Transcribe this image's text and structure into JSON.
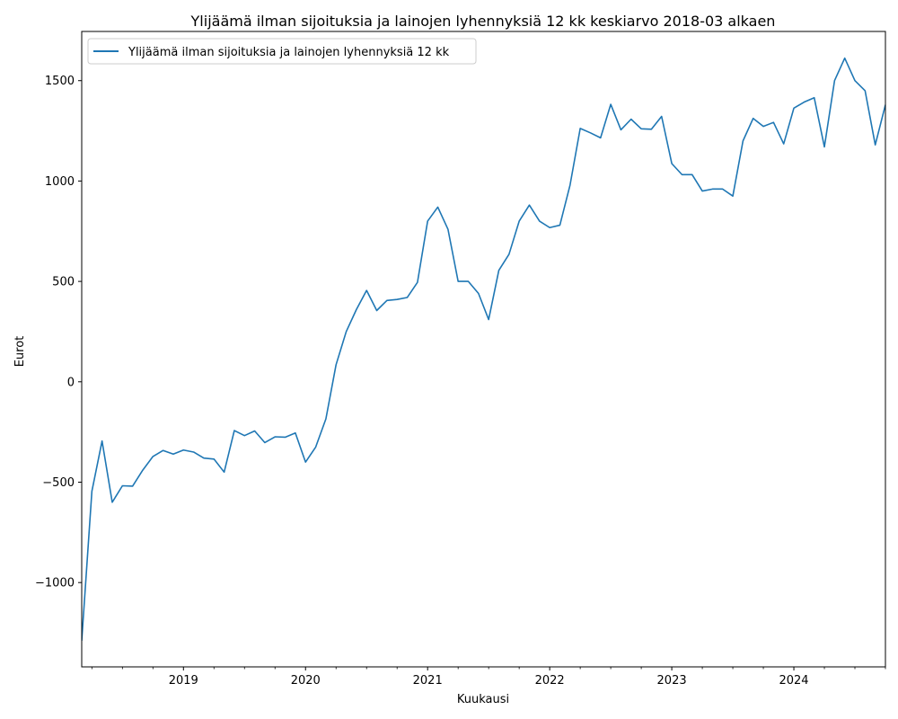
{
  "chart_data": {
    "type": "line",
    "title": "Ylijäämä ilman sijoituksia ja lainojen lyhennyksiä 12 kk keskiarvo 2018-03 alkaen",
    "xlabel": "Kuukausi",
    "ylabel": "Eurot",
    "x_range": [
      "2018-03",
      "2024-10"
    ],
    "ylim": [
      -1420,
      1745
    ],
    "y_ticks": [
      -1000,
      -500,
      0,
      500,
      1000,
      1500
    ],
    "y_tick_labels": [
      "−1000",
      "−500",
      "0",
      "500",
      "1000",
      "1500"
    ],
    "x_ticks": [
      "2019-01",
      "2020-01",
      "2021-01",
      "2022-01",
      "2023-01",
      "2024-01"
    ],
    "x_tick_labels": [
      "2019",
      "2020",
      "2021",
      "2022",
      "2023",
      "2024"
    ],
    "grid": false,
    "legend_position": "top-left",
    "series": [
      {
        "name": "Ylijäämä ilman sijoituksia ja lainojen lyhennyksiä 12 kk",
        "color": "#1f77b4",
        "x": [
          "2018-03",
          "2018-04",
          "2018-05",
          "2018-06",
          "2018-07",
          "2018-08",
          "2018-09",
          "2018-10",
          "2018-11",
          "2018-12",
          "2019-01",
          "2019-02",
          "2019-03",
          "2019-04",
          "2019-05",
          "2019-06",
          "2019-07",
          "2019-08",
          "2019-09",
          "2019-10",
          "2019-11",
          "2019-12",
          "2020-01",
          "2020-02",
          "2020-03",
          "2020-04",
          "2020-05",
          "2020-06",
          "2020-07",
          "2020-08",
          "2020-09",
          "2020-10",
          "2020-11",
          "2020-12",
          "2021-01",
          "2021-02",
          "2021-03",
          "2021-04",
          "2021-05",
          "2021-06",
          "2021-07",
          "2021-08",
          "2021-09",
          "2021-10",
          "2021-11",
          "2021-12",
          "2022-01",
          "2022-02",
          "2022-03",
          "2022-04",
          "2022-05",
          "2022-06",
          "2022-07",
          "2022-08",
          "2022-09",
          "2022-10",
          "2022-11",
          "2022-12",
          "2023-01",
          "2023-02",
          "2023-03",
          "2023-04",
          "2023-05",
          "2023-06",
          "2023-07",
          "2023-08",
          "2023-09",
          "2023-10",
          "2023-11",
          "2023-12",
          "2024-01",
          "2024-02",
          "2024-03",
          "2024-04",
          "2024-05",
          "2024-06",
          "2024-07",
          "2024-08",
          "2024-09",
          "2024-10"
        ],
        "values": [
          -1290,
          -545,
          -295,
          -600,
          -518,
          -520,
          -440,
          -372,
          -342,
          -360,
          -340,
          -350,
          -380,
          -385,
          -450,
          -243,
          -268,
          -245,
          -303,
          -274,
          -276,
          -255,
          -400,
          -325,
          -185,
          85,
          250,
          360,
          455,
          355,
          405,
          410,
          420,
          495,
          800,
          870,
          760,
          500,
          500,
          440,
          310,
          555,
          635,
          800,
          880,
          800,
          768,
          780,
          980,
          1262,
          1240,
          1215,
          1382,
          1255,
          1308,
          1260,
          1258,
          1322,
          1087,
          1032,
          1032,
          950,
          960,
          960,
          925,
          1200,
          1312,
          1272,
          1292,
          1185,
          1363,
          1393,
          1415,
          1170,
          1500,
          1612,
          1500,
          1450,
          1180,
          1380
        ]
      }
    ]
  }
}
